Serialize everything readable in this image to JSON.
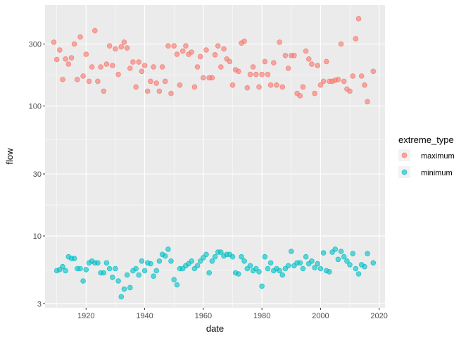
{
  "chart_data": {
    "type": "scatter",
    "xlabel": "date",
    "ylabel": "flow",
    "y_scale": "log10",
    "xlim": [
      1906,
      2022
    ],
    "ylim": [
      2.8,
      600
    ],
    "x_ticks": [
      1920,
      1940,
      1960,
      1980,
      2000,
      2020
    ],
    "y_ticks": [
      3,
      10,
      30,
      100,
      300
    ],
    "grid": true,
    "legend": {
      "title": "extreme_type",
      "placement": "right"
    },
    "series": [
      {
        "name": "maximum",
        "color": "#F8766D",
        "points": [
          [
            1909,
            310
          ],
          [
            1910,
            228
          ],
          [
            1911,
            270
          ],
          [
            1912,
            160
          ],
          [
            1913,
            230
          ],
          [
            1914,
            210
          ],
          [
            1915,
            235
          ],
          [
            1916,
            300
          ],
          [
            1917,
            160
          ],
          [
            1918,
            340
          ],
          [
            1919,
            170
          ],
          [
            1920,
            250
          ],
          [
            1921,
            155
          ],
          [
            1922,
            200
          ],
          [
            1923,
            380
          ],
          [
            1924,
            155
          ],
          [
            1925,
            200
          ],
          [
            1926,
            130
          ],
          [
            1927,
            210
          ],
          [
            1928,
            290
          ],
          [
            1929,
            205
          ],
          [
            1930,
            275
          ],
          [
            1931,
            175
          ],
          [
            1932,
            285
          ],
          [
            1933,
            310
          ],
          [
            1934,
            280
          ],
          [
            1935,
            195
          ],
          [
            1936,
            218
          ],
          [
            1937,
            140
          ],
          [
            1938,
            218
          ],
          [
            1939,
            185
          ],
          [
            1940,
            205
          ],
          [
            1941,
            130
          ],
          [
            1942,
            155
          ],
          [
            1943,
            200
          ],
          [
            1944,
            150
          ],
          [
            1945,
            130
          ],
          [
            1946,
            200
          ],
          [
            1947,
            155
          ],
          [
            1948,
            290
          ],
          [
            1949,
            125
          ],
          [
            1950,
            290
          ],
          [
            1951,
            250
          ],
          [
            1952,
            145
          ],
          [
            1953,
            265
          ],
          [
            1954,
            290
          ],
          [
            1955,
            250
          ],
          [
            1956,
            260
          ],
          [
            1957,
            140
          ],
          [
            1958,
            200
          ],
          [
            1959,
            240
          ],
          [
            1960,
            165
          ],
          [
            1961,
            270
          ],
          [
            1962,
            165
          ],
          [
            1963,
            165
          ],
          [
            1964,
            248
          ],
          [
            1965,
            290
          ],
          [
            1966,
            200
          ],
          [
            1967,
            275
          ],
          [
            1968,
            230
          ],
          [
            1969,
            220
          ],
          [
            1970,
            145
          ],
          [
            1971,
            190
          ],
          [
            1972,
            185
          ],
          [
            1973,
            305
          ],
          [
            1974,
            315
          ],
          [
            1975,
            138
          ],
          [
            1976,
            175
          ],
          [
            1977,
            200
          ],
          [
            1978,
            175
          ],
          [
            1979,
            140
          ],
          [
            1980,
            175
          ],
          [
            1981,
            220
          ],
          [
            1982,
            175
          ],
          [
            1983,
            145
          ],
          [
            1984,
            215
          ],
          [
            1985,
            145
          ],
          [
            1986,
            310
          ],
          [
            1987,
            140
          ],
          [
            1988,
            245
          ],
          [
            1989,
            195
          ],
          [
            1990,
            245
          ],
          [
            1991,
            245
          ],
          [
            1992,
            125
          ],
          [
            1993,
            120
          ],
          [
            1994,
            140
          ],
          [
            1995,
            265
          ],
          [
            1996,
            230
          ],
          [
            1997,
            210
          ],
          [
            1998,
            125
          ],
          [
            1999,
            205
          ],
          [
            2000,
            145
          ],
          [
            2001,
            155
          ],
          [
            2002,
            220
          ],
          [
            2003,
            155
          ],
          [
            2004,
            155
          ],
          [
            2005,
            158
          ],
          [
            2006,
            160
          ],
          [
            2007,
            300
          ],
          [
            2008,
            155
          ],
          [
            2009,
            135
          ],
          [
            2010,
            130
          ],
          [
            2011,
            170
          ],
          [
            2012,
            330
          ],
          [
            2013,
            470
          ],
          [
            2014,
            170
          ],
          [
            2015,
            145
          ],
          [
            2016,
            108
          ],
          [
            2018,
            185
          ]
        ]
      },
      {
        "name": "minimum",
        "color": "#00BFC4",
        "points": [
          [
            1910,
            5.4
          ],
          [
            1911,
            5.5
          ],
          [
            1912,
            5.8
          ],
          [
            1913,
            5.4
          ],
          [
            1914,
            6.9
          ],
          [
            1915,
            6.7
          ],
          [
            1916,
            6.7
          ],
          [
            1917,
            5.6
          ],
          [
            1918,
            5.6
          ],
          [
            1919,
            4.5
          ],
          [
            1920,
            5.5
          ],
          [
            1921,
            6.2
          ],
          [
            1922,
            6.4
          ],
          [
            1923,
            6.2
          ],
          [
            1924,
            6.2
          ],
          [
            1925,
            5.2
          ],
          [
            1926,
            5.2
          ],
          [
            1927,
            6.2
          ],
          [
            1928,
            5.6
          ],
          [
            1929,
            4.8
          ],
          [
            1930,
            5.6
          ],
          [
            1931,
            4.5
          ],
          [
            1932,
            3.4
          ],
          [
            1933,
            3.9
          ],
          [
            1934,
            5.0
          ],
          [
            1935,
            4.0
          ],
          [
            1936,
            5.4
          ],
          [
            1937,
            5.6
          ],
          [
            1938,
            5.0
          ],
          [
            1939,
            6.4
          ],
          [
            1940,
            5.4
          ],
          [
            1941,
            6.2
          ],
          [
            1942,
            6.1
          ],
          [
            1943,
            4.9
          ],
          [
            1944,
            5.4
          ],
          [
            1945,
            6.4
          ],
          [
            1946,
            7.2
          ],
          [
            1947,
            7.0
          ],
          [
            1948,
            7.9
          ],
          [
            1949,
            6.4
          ],
          [
            1950,
            4.6
          ],
          [
            1951,
            4.2
          ],
          [
            1952,
            5.6
          ],
          [
            1953,
            5.6
          ],
          [
            1954,
            5.9
          ],
          [
            1955,
            6.1
          ],
          [
            1956,
            6.4
          ],
          [
            1957,
            5.6
          ],
          [
            1958,
            5.9
          ],
          [
            1959,
            6.4
          ],
          [
            1960,
            6.8
          ],
          [
            1961,
            7.2
          ],
          [
            1962,
            5.2
          ],
          [
            1963,
            6.4
          ],
          [
            1964,
            6.9
          ],
          [
            1965,
            7.5
          ],
          [
            1966,
            7.5
          ],
          [
            1967,
            7.0
          ],
          [
            1968,
            7.2
          ],
          [
            1969,
            7.2
          ],
          [
            1970,
            6.9
          ],
          [
            1971,
            5.2
          ],
          [
            1972,
            5.1
          ],
          [
            1973,
            6.9
          ],
          [
            1974,
            6.4
          ],
          [
            1975,
            5.6
          ],
          [
            1976,
            5.9
          ],
          [
            1977,
            5.4
          ],
          [
            1978,
            5.6
          ],
          [
            1979,
            5.3
          ],
          [
            1980,
            4.1
          ],
          [
            1981,
            6.9
          ],
          [
            1982,
            5.6
          ],
          [
            1983,
            6.2
          ],
          [
            1984,
            5.4
          ],
          [
            1985,
            5.6
          ],
          [
            1986,
            5.4
          ],
          [
            1987,
            5.0
          ],
          [
            1988,
            5.6
          ],
          [
            1989,
            5.9
          ],
          [
            1990,
            7.6
          ],
          [
            1991,
            5.9
          ],
          [
            1992,
            6.2
          ],
          [
            1993,
            6.2
          ],
          [
            1994,
            5.6
          ],
          [
            1995,
            6.9
          ],
          [
            1996,
            6.1
          ],
          [
            1997,
            6.4
          ],
          [
            1998,
            5.7
          ],
          [
            1999,
            6.1
          ],
          [
            2000,
            5.6
          ],
          [
            2001,
            7.4
          ],
          [
            2002,
            5.4
          ],
          [
            2003,
            5.3
          ],
          [
            2004,
            7.5
          ],
          [
            2005,
            7.9
          ],
          [
            2006,
            6.6
          ],
          [
            2007,
            7.6
          ],
          [
            2008,
            6.9
          ],
          [
            2009,
            6.4
          ],
          [
            2010,
            6.0
          ],
          [
            2011,
            7.3
          ],
          [
            2012,
            5.6
          ],
          [
            2013,
            5.1
          ],
          [
            2014,
            6.0
          ],
          [
            2015,
            5.8
          ],
          [
            2016,
            7.3
          ],
          [
            2018,
            6.2
          ]
        ]
      }
    ]
  }
}
